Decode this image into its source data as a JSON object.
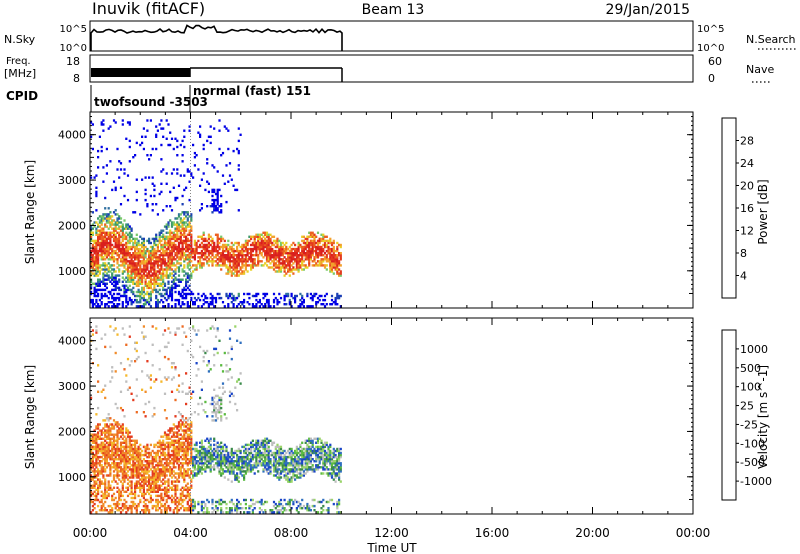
{
  "header": {
    "site": "Inuvik (fitACF)",
    "beam": "Beam 13",
    "date": "29/Jan/2015"
  },
  "nsky_panel": {
    "left_label": "N.Sky",
    "left_ticks": [
      "10^5",
      "10^0"
    ],
    "right_ticks": [
      "10^5",
      "10^0"
    ],
    "right_label": "N.Search"
  },
  "freq_panel": {
    "left_label_1": "Freq.",
    "left_label_2": "[MHz]",
    "left_ticks": [
      "18",
      "8"
    ],
    "right_ticks": [
      "60",
      "0"
    ],
    "right_label": "Nave"
  },
  "cpid_panel": {
    "label": "CPID",
    "modes": [
      {
        "name": "twofsound",
        "id": "-3503"
      },
      {
        "name": "normal (fast)",
        "id": "151"
      }
    ],
    "mode_label_1": "twofsound -3503",
    "mode_label_2": "normal (fast) 151"
  },
  "chart_data": [
    {
      "type": "heatmap",
      "title": "",
      "xlabel": "Time UT",
      "ylabel": "Slant Range [km]",
      "x_ticks": [
        "00:00",
        "04:00",
        "08:00",
        "12:00",
        "16:00",
        "20:00",
        "00:00"
      ],
      "y_ticks": [
        "1000",
        "2000",
        "3000",
        "4000"
      ],
      "ylim": [
        180,
        4500
      ],
      "xlim_hours": [
        0,
        24
      ],
      "data_coverage_hours": [
        0,
        10
      ],
      "mode_change_hour": 4.0,
      "colorbar": {
        "label": "Power [dB]",
        "ticks": [
          "28",
          "24",
          "20",
          "16",
          "12",
          "8",
          "4"
        ],
        "colors": [
          "#0000e6",
          "#1b3fb4",
          "#2f6fa0",
          "#3e9a6a",
          "#78c86a",
          "#e8cf25",
          "#f3a12d",
          "#ec6020",
          "#e43a1e",
          "#d91f1f"
        ]
      }
    },
    {
      "type": "heatmap",
      "title": "",
      "xlabel": "Time UT",
      "ylabel": "Slant Range [km]",
      "x_ticks": [
        "00:00",
        "04:00",
        "08:00",
        "12:00",
        "16:00",
        "20:00",
        "00:00"
      ],
      "y_ticks": [
        "1000",
        "2000",
        "3000",
        "4000"
      ],
      "ylim": [
        180,
        4500
      ],
      "xlim_hours": [
        0,
        24
      ],
      "data_coverage_hours": [
        0,
        10
      ],
      "colorbar": {
        "label": "Velocity [m s^-1]",
        "ticks": [
          "1000",
          "500",
          "100",
          "25",
          "-25",
          "-100",
          "-500",
          "-1000"
        ],
        "colors": [
          "#1a45c8",
          "#2f6fbf",
          "#3a8a4a",
          "#5aba40",
          "#9ad46a",
          "#bebebe",
          "#f5b82c",
          "#f18c2a",
          "#ec6a22",
          "#e43a1e",
          "#d91f1f"
        ]
      }
    }
  ]
}
